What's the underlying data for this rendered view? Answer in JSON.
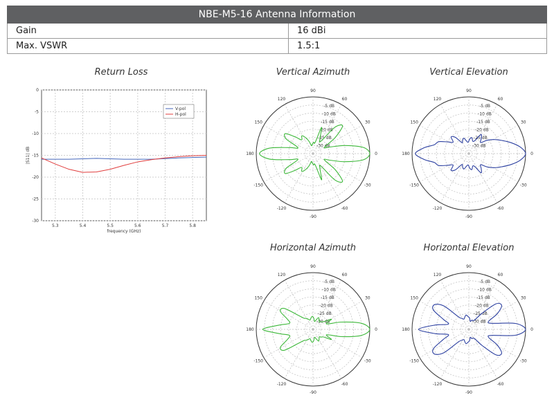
{
  "table": {
    "title": "NBE-M5-16 Antenna Information",
    "rows": [
      {
        "label": "Gain",
        "value": "16 dBi"
      },
      {
        "label": "Max. VSWR",
        "value": "1.5:1"
      }
    ]
  },
  "colors": {
    "header_bg": "#5f6062",
    "green": "#3db83a",
    "blue": "#2b3fa0",
    "vpol": "#4466bb",
    "hpol": "#e03c3c"
  },
  "chart_data": [
    {
      "type": "line",
      "title": "Return Loss",
      "xlabel": "frequency (GHz)",
      "ylabel": "|S11| dB",
      "xlim": [
        5.25,
        5.85
      ],
      "ylim": [
        -30,
        0
      ],
      "xticks": [
        "5.3",
        "5.4",
        "5.5",
        "5.6",
        "5.7",
        "5.8"
      ],
      "yticks": [
        "0",
        "-5",
        "-10",
        "-15",
        "-20",
        "-25",
        "-30"
      ],
      "grid": true,
      "legend_position": "top-right",
      "series": [
        {
          "name": "V-pol",
          "x": [
            5.25,
            5.35,
            5.45,
            5.55,
            5.65,
            5.75,
            5.85
          ],
          "values": [
            -15.9,
            -15.9,
            -15.7,
            -15.9,
            -15.9,
            -15.6,
            -15.4
          ]
        },
        {
          "name": "H-pol",
          "x": [
            5.25,
            5.3,
            5.35,
            5.4,
            5.45,
            5.5,
            5.55,
            5.6,
            5.65,
            5.7,
            5.75,
            5.8,
            5.85
          ],
          "values": [
            -15.6,
            -17.0,
            -18.2,
            -18.9,
            -18.8,
            -18.2,
            -17.3,
            -16.5,
            -16.0,
            -15.6,
            -15.3,
            -15.1,
            -15.0
          ]
        }
      ]
    },
    {
      "type": "polar",
      "title": "Vertical Azimuth",
      "color": "green",
      "ring_labels": [
        "-5 dB",
        "-10 dB",
        "-15 dB",
        "-20 dB",
        "-25 dB",
        "-30 dB"
      ],
      "angle_labels": [
        "90",
        "60",
        "30",
        "0",
        "-30",
        "-60",
        "-90",
        "-120",
        "-150",
        "180",
        "150",
        "120"
      ],
      "pattern_db": [
        0,
        -4,
        -15,
        -24,
        -27,
        -18,
        -10,
        -14,
        -26,
        -25,
        -18,
        -28,
        -28,
        -29,
        -30,
        -27,
        -24,
        -22,
        -24,
        -20,
        -14,
        -16,
        -25,
        -20,
        -8,
        -2
      ]
    },
    {
      "type": "polar",
      "title": "Vertical Elevation",
      "color": "blue",
      "ring_labels": [
        "-5 dB",
        "-10 dB",
        "-15 dB",
        "-20 dB",
        "-25 dB",
        "-30 dB"
      ],
      "angle_labels": [
        "90",
        "60",
        "30",
        "0",
        "-30",
        "-60",
        "-90",
        "-120",
        "-150",
        "180",
        "150",
        "120"
      ],
      "pattern_db": [
        0,
        -3,
        -8,
        -13,
        -17,
        -21,
        -25,
        -23,
        -21,
        -26,
        -27,
        -25,
        -26,
        -28,
        -27,
        -25,
        -26,
        -27,
        -22,
        -20,
        -23,
        -20,
        -15,
        -13,
        -7,
        -2
      ]
    },
    {
      "type": "polar",
      "title": "Horizontal Azimuth",
      "color": "green",
      "ring_labels": [
        "-5 dB",
        "-10 dB",
        "-15 dB",
        "-20 dB",
        "-25 dB",
        "-30 dB"
      ],
      "angle_labels": [
        "90",
        "60",
        "30",
        "0",
        "-30",
        "-60",
        "-90",
        "-120",
        "-150",
        "180",
        "150",
        "120"
      ],
      "pattern_db": [
        0,
        -5,
        -17,
        -26,
        -22,
        -27,
        -28,
        -29,
        -28,
        -27,
        -29,
        -30,
        -28,
        -27,
        -28,
        -29,
        -28,
        -27,
        -26,
        -22,
        -13,
        -12,
        -18,
        -20,
        -14,
        -4
      ]
    },
    {
      "type": "polar",
      "title": "Horizontal Elevation",
      "color": "blue",
      "ring_labels": [
        "-5 dB",
        "-10 dB",
        "-15 dB",
        "-20 dB",
        "-25 dB",
        "-30 dB"
      ],
      "angle_labels": [
        "90",
        "60",
        "30",
        "0",
        "-30",
        "-60",
        "-90",
        "-120",
        "-150",
        "180",
        "150",
        "120"
      ],
      "pattern_db": [
        0,
        -6,
        -20,
        -22,
        -15,
        -10,
        -12,
        -22,
        -28,
        -29,
        -29,
        -30,
        -28,
        -27,
        -26,
        -27,
        -28,
        -27,
        -25,
        -14,
        -9,
        -10,
        -18,
        -22,
        -14,
        -4
      ]
    }
  ]
}
